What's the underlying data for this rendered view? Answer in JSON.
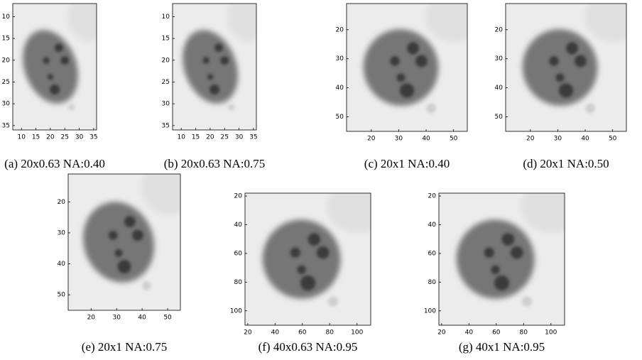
{
  "panels": [
    {
      "caption": "(a) 20x0.63 NA:0.40",
      "xlim": [
        7,
        36
      ],
      "ylim": [
        7,
        36
      ],
      "xticks": [
        10,
        15,
        20,
        25,
        30,
        35
      ],
      "yticks": [
        10,
        15,
        20,
        25,
        30,
        35
      ]
    },
    {
      "caption": "(b) 20x0.63 NA:0.75",
      "xlim": [
        7,
        36
      ],
      "ylim": [
        7,
        36
      ],
      "xticks": [
        10,
        15,
        20,
        25,
        30,
        35
      ],
      "yticks": [
        10,
        15,
        20,
        25,
        30,
        35
      ]
    },
    {
      "caption": "(c) 20x1 NA:0.40",
      "xlim": [
        11,
        55
      ],
      "ylim": [
        11,
        55
      ],
      "xticks": [
        20,
        30,
        40,
        50
      ],
      "yticks": [
        20,
        30,
        40,
        50
      ]
    },
    {
      "caption": "(d) 20x1 NA:0.50",
      "xlim": [
        11,
        55
      ],
      "ylim": [
        11,
        55
      ],
      "xticks": [
        20,
        30,
        40,
        50
      ],
      "yticks": [
        20,
        30,
        40,
        50
      ]
    },
    {
      "caption": "(e) 20x1 NA:0.75",
      "xlim": [
        11,
        55
      ],
      "ylim": [
        11,
        55
      ],
      "xticks": [
        20,
        30,
        40,
        50
      ],
      "yticks": [
        20,
        30,
        40,
        50
      ]
    },
    {
      "caption": "(f) 40x0.63 NA:0.95",
      "xlim": [
        18,
        110
      ],
      "ylim": [
        18,
        110
      ],
      "xticks": [
        20,
        40,
        60,
        80,
        100
      ],
      "yticks": [
        20,
        40,
        60,
        80,
        100
      ]
    },
    {
      "caption": "(g) 40x1 NA:0.95",
      "xlim": [
        18,
        110
      ],
      "ylim": [
        18,
        110
      ],
      "xticks": [
        20,
        40,
        60,
        80,
        100
      ],
      "yticks": [
        20,
        40,
        60,
        80,
        100
      ]
    }
  ]
}
